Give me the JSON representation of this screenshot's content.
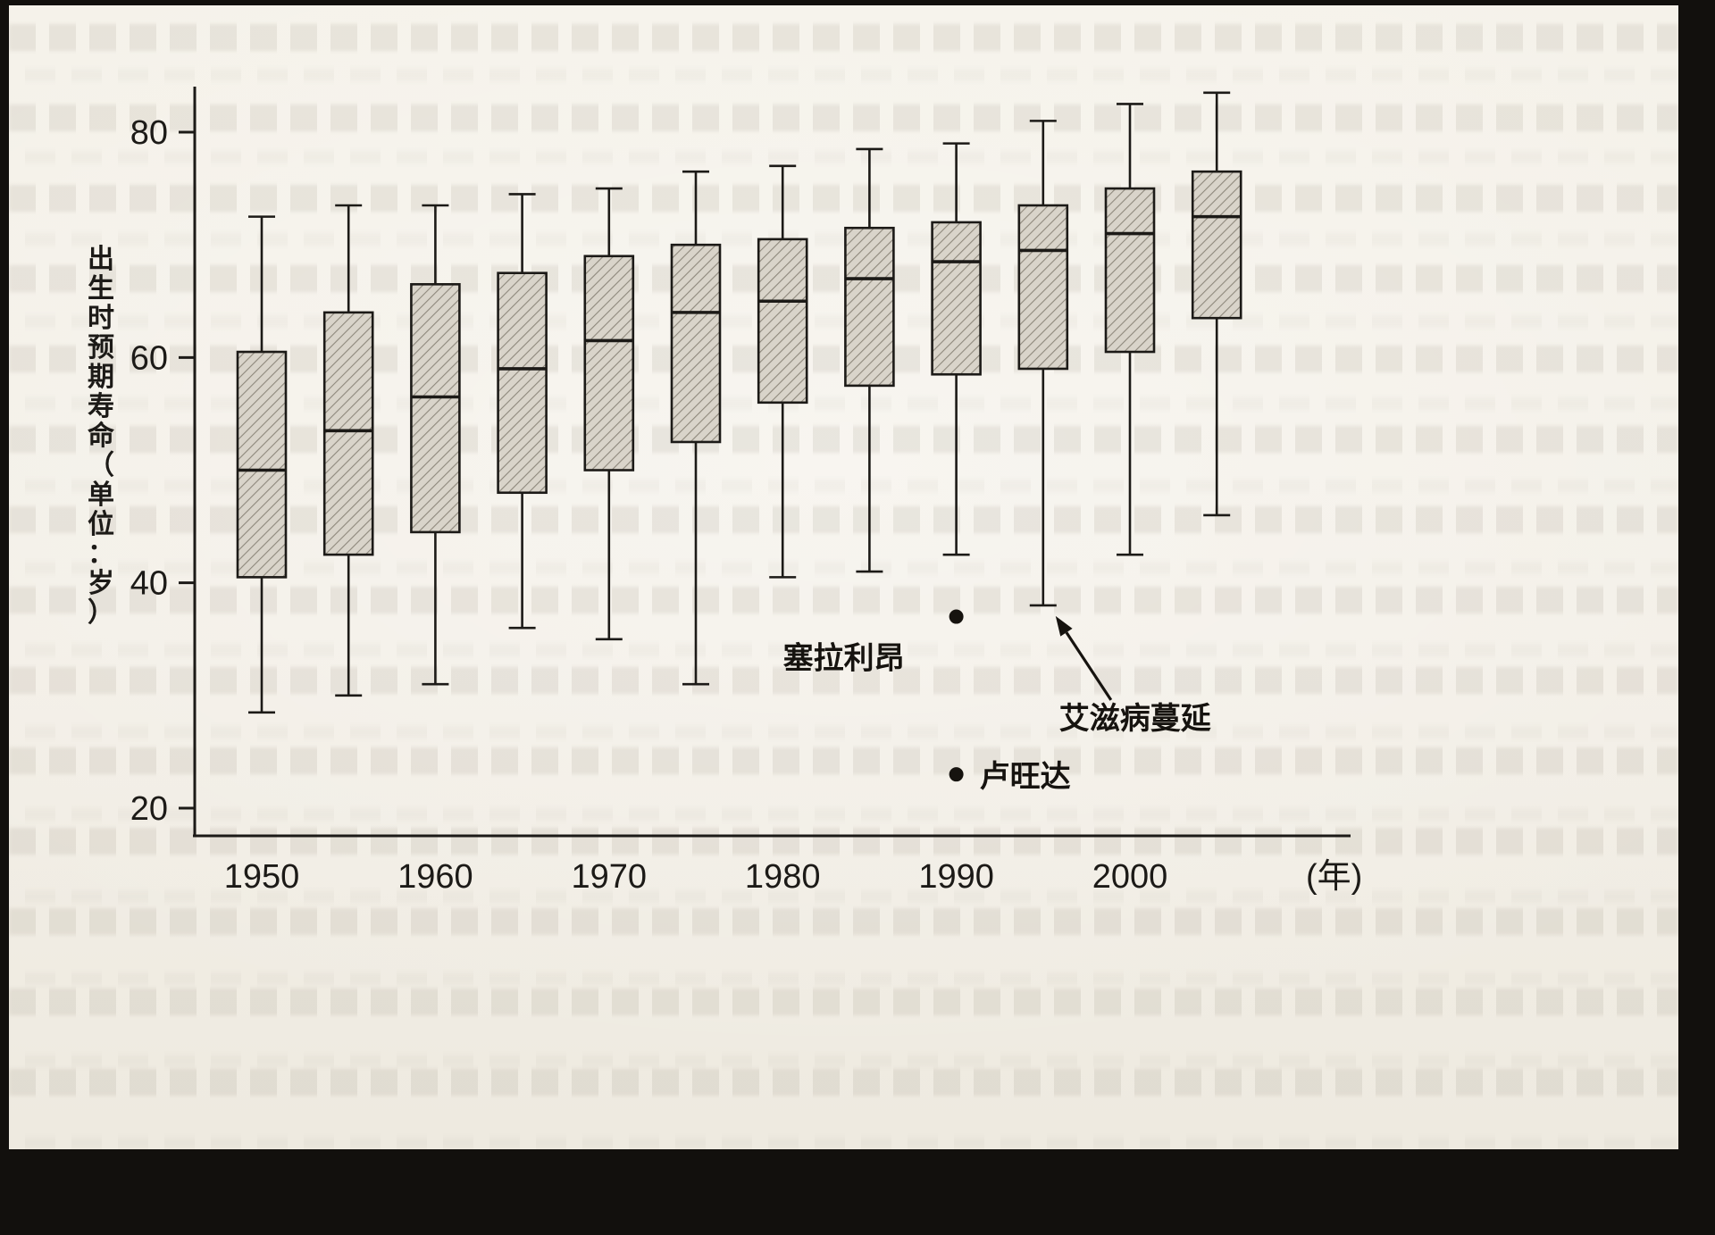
{
  "page": {
    "background_color": "#12100d",
    "paper_color": "#f4f1e9"
  },
  "chart_data": {
    "type": "boxplot",
    "title": "",
    "ylabel": "出生时预期寿命（单位：岁）",
    "xlabel_unit": "(年)",
    "ylim": [
      20,
      88
    ],
    "xlim": [
      1948,
      2008
    ],
    "yticks": [
      20,
      40,
      60,
      80
    ],
    "xticks": [
      1950,
      1960,
      1970,
      1980,
      1990,
      2000
    ],
    "grid": false,
    "legend": "none",
    "axis_color": "#1c1a17",
    "text_color": "#1c1a17",
    "box_fill": "#d9d4ca",
    "hatch_color": "#8e887c",
    "series": [
      {
        "year": 1950,
        "min": 28.5,
        "q1": 40.5,
        "median": 50,
        "q3": 60.5,
        "max": 72.5
      },
      {
        "year": 1955,
        "min": 30,
        "q1": 42.5,
        "median": 53.5,
        "q3": 64,
        "max": 73.5
      },
      {
        "year": 1960,
        "min": 31,
        "q1": 44.5,
        "median": 56.5,
        "q3": 66.5,
        "max": 73.5
      },
      {
        "year": 1965,
        "min": 36,
        "q1": 48,
        "median": 59,
        "q3": 67.5,
        "max": 74.5
      },
      {
        "year": 1970,
        "min": 35,
        "q1": 50,
        "median": 61.5,
        "q3": 69,
        "max": 75
      },
      {
        "year": 1975,
        "min": 31,
        "q1": 52.5,
        "median": 64,
        "q3": 70,
        "max": 76.5
      },
      {
        "year": 1980,
        "min": 40.5,
        "q1": 56,
        "median": 65,
        "q3": 70.5,
        "max": 77
      },
      {
        "year": 1985,
        "min": 41,
        "q1": 57.5,
        "median": 67,
        "q3": 71.5,
        "max": 78.5
      },
      {
        "year": 1990,
        "min": 42.5,
        "q1": 58.5,
        "median": 68.5,
        "q3": 72,
        "max": 79
      },
      {
        "year": 1995,
        "min": 38,
        "q1": 59,
        "median": 69.5,
        "q3": 73.5,
        "max": 81
      },
      {
        "year": 2000,
        "min": 42.5,
        "q1": 60.5,
        "median": 71,
        "q3": 75,
        "max": 82.5
      },
      {
        "year": 2005,
        "min": 46,
        "q1": 63.5,
        "median": 72.5,
        "q3": 76.5,
        "max": 83.5
      }
    ],
    "outliers": [
      {
        "year": 1990,
        "value": 37,
        "label": "塞拉利昂",
        "label_side": "below-left"
      },
      {
        "year": 1990,
        "value": 23,
        "label": "卢旺达",
        "label_side": "right"
      }
    ],
    "annotations": [
      {
        "text": "艾滋病蔓延",
        "points_to": {
          "year": 1995,
          "value": 38
        }
      }
    ]
  }
}
